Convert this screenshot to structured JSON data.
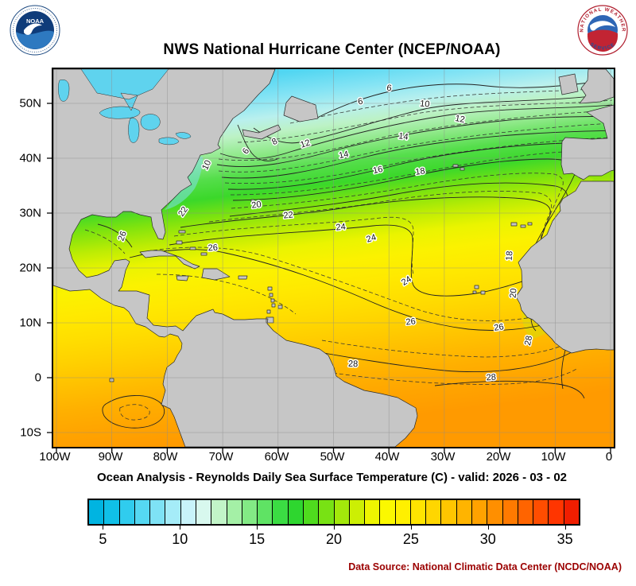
{
  "header": {
    "title": "NWS National Hurricane Center (NCEP/NOAA)",
    "noaa_logo_text": "NOAA",
    "nws_ring_top": "NATIONAL WEATHER",
    "nws_ring_bottom": "SERVICE"
  },
  "map": {
    "lat_ticks": [
      "50N",
      "40N",
      "30N",
      "20N",
      "10N",
      "0",
      "10S"
    ],
    "lon_ticks": [
      "100W",
      "90W",
      "80W",
      "70W",
      "60W",
      "50W",
      "40W",
      "30W",
      "20W",
      "10W",
      "0"
    ],
    "contour_labels": [
      "6",
      "6",
      "10",
      "12",
      "8",
      "12",
      "6",
      "10",
      "14",
      "14",
      "16",
      "18",
      "20",
      "22",
      "22",
      "24",
      "24",
      "26",
      "26",
      "18",
      "20",
      "24",
      "26",
      "26",
      "28",
      "28",
      "28"
    ],
    "land_color": "#C6C6C6",
    "lake_color": "#5FD3EE"
  },
  "caption": "Ocean Analysis - Reynolds Daily Sea Surface Temperature (C) - valid: 2026 - 03 - 02",
  "colorbar": {
    "min": 4,
    "max": 36,
    "ticks": [
      5,
      10,
      15,
      20,
      25,
      30,
      35
    ],
    "colors": [
      "#00B4E1",
      "#10C0E8",
      "#30CCEE",
      "#55D8F2",
      "#7EE2F5",
      "#A5ECF8",
      "#C8F3FA",
      "#D8F8EE",
      "#C2F5C8",
      "#A4F0A6",
      "#83EA85",
      "#5FE364",
      "#3BDC43",
      "#2ED62F",
      "#4FDB1E",
      "#78E214",
      "#A3E80B",
      "#CCEF04",
      "#EEF500",
      "#FBF800",
      "#FFF000",
      "#FFE400",
      "#FFD600",
      "#FFC600",
      "#FFB400",
      "#FFA200",
      "#FF8F00",
      "#FF7A00",
      "#FF6400",
      "#FF4D00",
      "#FF3500",
      "#F01E00"
    ]
  },
  "footer": {
    "data_source": "Data Source: National Climatic Data Center (NCDC/NOAA)"
  },
  "chart_data": {
    "type": "heatmap",
    "title": "Ocean Analysis - Reynolds Daily Sea Surface Temperature (C) - valid: 2026 - 03 - 02",
    "units": "C",
    "lat_range": [
      "10S",
      "50N"
    ],
    "lon_range": [
      "100W",
      "0"
    ],
    "labeled_contour_levels": [
      6,
      8,
      10,
      12,
      14,
      16,
      18,
      20,
      22,
      24,
      26,
      28
    ],
    "colorbar_ticks": [
      5,
      10,
      15,
      20,
      25,
      30,
      35
    ]
  }
}
